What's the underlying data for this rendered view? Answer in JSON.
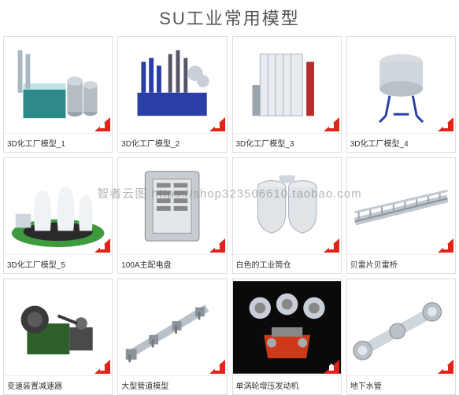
{
  "title": "SU工业常用模型",
  "watermark": "智者云图  https://shop323506610.taobao.com",
  "badge_color": "#e2231a",
  "colors": {
    "border": "#dddddd",
    "caption_text": "#333333",
    "title_text": "#555555",
    "bg": "#ffffff"
  },
  "items": [
    {
      "label": "3D化工厂模型_1",
      "thumb": "factory1"
    },
    {
      "label": "3D化工厂模型_2",
      "thumb": "factory2"
    },
    {
      "label": "3D化工厂模型_3",
      "thumb": "factory3"
    },
    {
      "label": "3D化工厂模型_4",
      "thumb": "tank"
    },
    {
      "label": "3D化工厂模型_5",
      "thumb": "nuclear"
    },
    {
      "label": "100A主配电盘",
      "thumb": "panel"
    },
    {
      "label": "白色的工业筒仓",
      "thumb": "silo"
    },
    {
      "label": "贝雷片贝雷桥",
      "thumb": "bridge"
    },
    {
      "label": "变速装置减速器",
      "thumb": "gearbox"
    },
    {
      "label": "大型管道模型",
      "thumb": "pipe"
    },
    {
      "label": "单涡轮增压发动机",
      "thumb": "engine"
    },
    {
      "label": "地下水管",
      "thumb": "waterpipe"
    }
  ]
}
